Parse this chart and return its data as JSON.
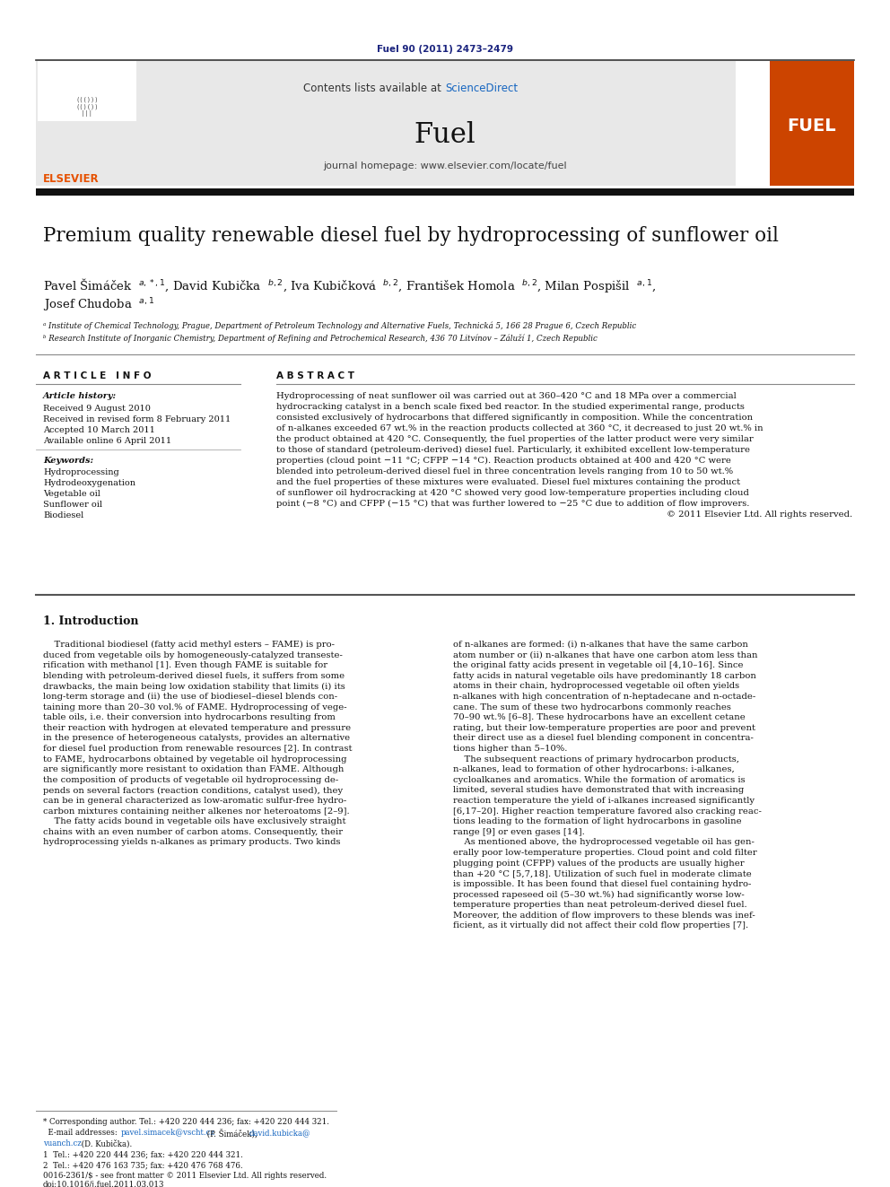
{
  "page_width": 9.92,
  "page_height": 13.23,
  "background_color": "#ffffff",
  "journal_ref": "Fuel 90 (2011) 2473–2479",
  "journal_ref_color": "#1a237e",
  "journal_name": "Fuel",
  "journal_homepage": "journal homepage: www.elsevier.com/locate/fuel",
  "sciencedirect_color": "#1565c0",
  "header_bg": "#e8e8e8",
  "thick_bar_color": "#111111",
  "elsevier_color": "#e65100",
  "fuel_cover_color": "#cc4400",
  "paper_title": "Premium quality renewable diesel fuel by hydroprocessing of sunflower oil",
  "affil_a": "ᵃ Institute of Chemical Technology, Prague, Department of Petroleum Technology and Alternative Fuels, Technická 5, 166 28 Prague 6, Czech Republic",
  "affil_b": "ᵇ Research Institute of Inorganic Chemistry, Department of Refining and Petrochemical Research, 436 70 Litvínov – Záluží 1, Czech Republic",
  "article_info_header": "A R T I C L E   I N F O",
  "abstract_header": "A B S T R A C T",
  "article_history_label": "Article history:",
  "received": "Received 9 August 2010",
  "revised": "Received in revised form 8 February 2011",
  "accepted": "Accepted 10 March 2011",
  "online": "Available online 6 April 2011",
  "keywords_label": "Keywords:",
  "keywords": [
    "Hydroprocessing",
    "Hydrodeoxygenation",
    "Vegetable oil",
    "Sunflower oil",
    "Biodiesel"
  ],
  "intro_header": "1. Introduction",
  "footnote_line1": "* Corresponding author. Tel.: +420 220 444 236; fax: +420 220 444 321.",
  "footnote_line3": "1  Tel.: +420 220 444 236; fax: +420 220 444 321.",
  "footnote_line4": "2  Tel.: +420 476 163 735; fax: +420 476 768 476.",
  "doi_line1": "0016-2361/$ - see front matter © 2011 Elsevier Ltd. All rights reserved.",
  "doi_line2": "doi:10.1016/j.fuel.2011.03.013"
}
